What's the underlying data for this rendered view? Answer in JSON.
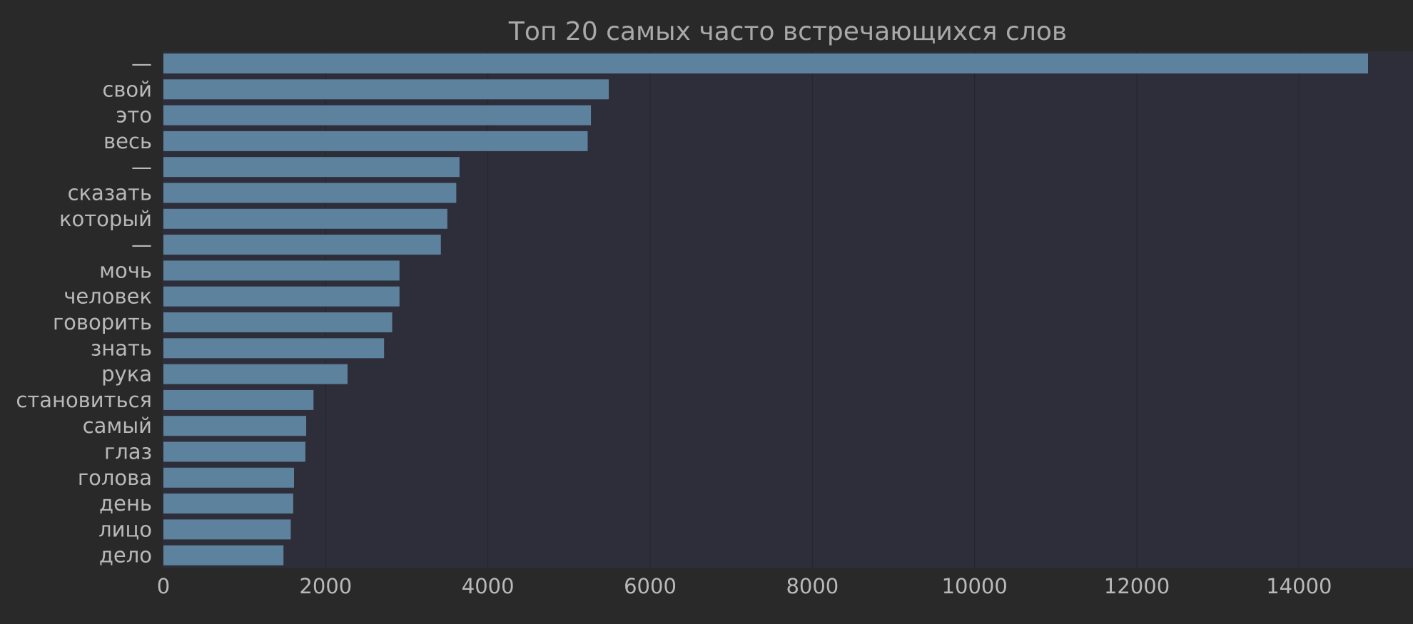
{
  "chart_data": {
    "type": "bar",
    "orientation": "horizontal",
    "title": "Топ 20 самых часто встречающихся слов",
    "xlabel": "",
    "ylabel": "",
    "categories": [
      "—",
      "свой",
      "это",
      "весь",
      "—",
      "сказать",
      "который",
      "—",
      "мочь",
      "человек",
      "говорить",
      "знать",
      "рука",
      "становиться",
      "самый",
      "глаз",
      "голова",
      "день",
      "лицо",
      "дело"
    ],
    "values": [
      14850,
      5490,
      5270,
      5230,
      3650,
      3610,
      3500,
      3420,
      2910,
      2910,
      2820,
      2720,
      2270,
      1850,
      1760,
      1750,
      1610,
      1600,
      1570,
      1480
    ],
    "x_ticks": [
      "0",
      "2000",
      "4000",
      "6000",
      "8000",
      "10000",
      "12000",
      "14000"
    ],
    "xlim": [
      0,
      15400
    ],
    "grid": true,
    "legend": "none"
  },
  "colors": {
    "background": "#292929",
    "plot_background": "#2e2e3a",
    "bar": "#5d829e",
    "text": "#b9b9b9",
    "title": "#a9a9a9",
    "grid": "#262630"
  }
}
